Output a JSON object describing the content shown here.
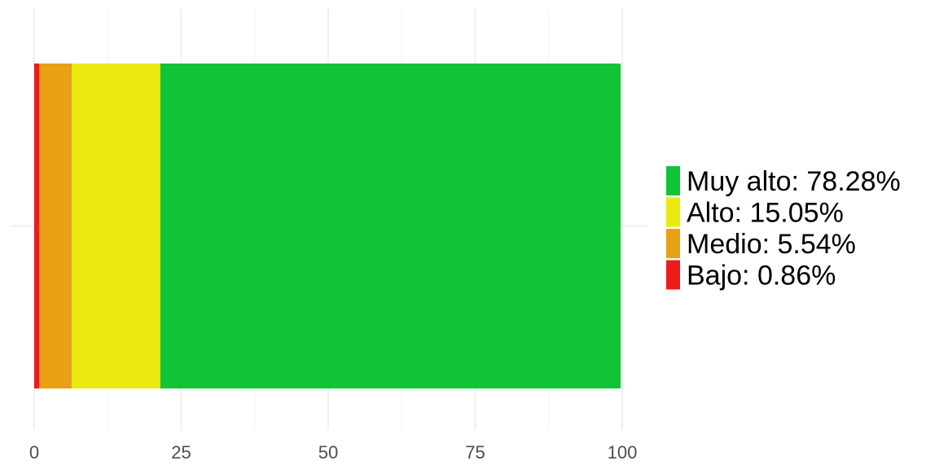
{
  "chart_data": {
    "type": "bar",
    "orientation": "horizontal",
    "stacked": true,
    "categories": [
      ""
    ],
    "series": [
      {
        "name": "Bajo: 0.86%",
        "values": [
          0.86
        ],
        "color": "#ee1b1b"
      },
      {
        "name": "Medio: 5.54%",
        "values": [
          5.54
        ],
        "color": "#e8a015"
      },
      {
        "name": "Alto: 15.05%",
        "values": [
          15.05
        ],
        "color": "#eaea10"
      },
      {
        "name": "Muy alto: 78.28%",
        "values": [
          78.28
        ],
        "color": "#10c435"
      }
    ],
    "legend_order": [
      "Muy alto: 78.28%",
      "Alto: 15.05%",
      "Medio: 5.54%",
      "Bajo: 0.86%"
    ],
    "legend_position": "right",
    "xlim": [
      0,
      100
    ],
    "xticks": [
      "0",
      "25",
      "50",
      "75",
      "100"
    ],
    "xtick_values": [
      0,
      25,
      50,
      75,
      100
    ],
    "grid": true,
    "grid_color": "#ebebeb",
    "title": "",
    "xlabel": "",
    "ylabel": ""
  }
}
